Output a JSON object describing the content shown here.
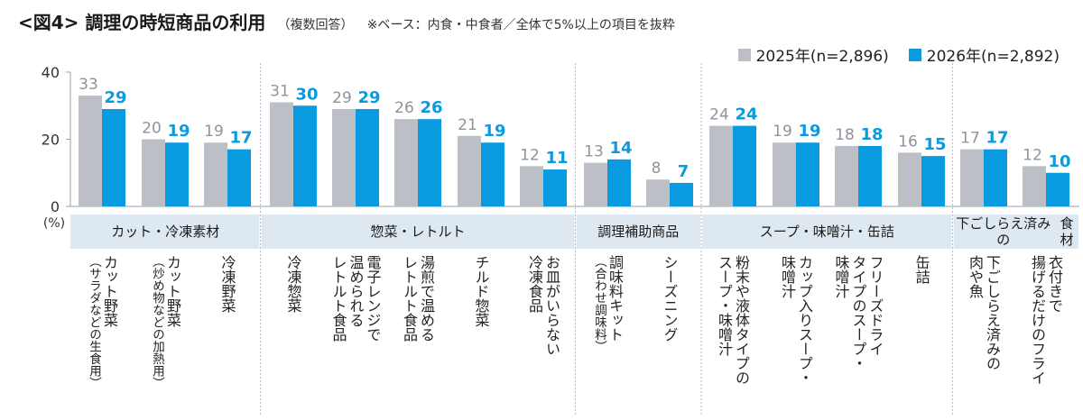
{
  "title": "<図4> 調理の時短商品の利用",
  "subtitle": "（複数回答）",
  "note": "※ベース：内食・中食者／全体で5%以上の項目を抜粋",
  "colors": {
    "s2025": "#bcc0c6",
    "s2026": "#0a9ae0",
    "catBg": "#dde8f1"
  },
  "chart_data": {
    "type": "bar",
    "ylabel": "(%)",
    "ylim": [
      0,
      40
    ],
    "yticks": [
      0,
      20,
      40
    ],
    "grid": false,
    "legend_position": "top-right",
    "categories": [
      "カット野菜（サラダなどの生食用）",
      "カット野菜（炒め物などの加熱用）",
      "冷凍野菜",
      "冷凍惣菜",
      "電子レンジで温められるレトルト食品",
      "湯煎で温めるレトルト食品",
      "チルド惣菜",
      "お皿がいらない冷凍食品",
      "調味料キット（合わせ調味料）",
      "シーズニング",
      "粉末や液体タイプのスープ・味噌汁",
      "カップ入りスープ・味噌汁",
      "フリーズドライタイプのスープ・味噌汁",
      "缶詰",
      "下ごしらえ済みの肉や魚",
      "衣付きで揚げるだけのフライ"
    ],
    "labels": [
      {
        "main": "カット野菜",
        "sub": "（サラダなどの生食用）"
      },
      {
        "main": "カット野菜",
        "sub": "（炒め物などの加熱用）"
      },
      {
        "main": "冷凍野菜"
      },
      {
        "main": "冷凍惣菜"
      },
      {
        "main": "電子レンジで\n温められる\nレトルト食品"
      },
      {
        "main": "湯煎で温める\nレトルト食品"
      },
      {
        "main": "チルド惣菜"
      },
      {
        "main": "お皿がいらない\n冷凍食品"
      },
      {
        "main": "調味料キット",
        "sub": "（合わせ調味料）"
      },
      {
        "main": "シーズニング"
      },
      {
        "main": "粉末や液体タイプの\nスープ・味噌汁"
      },
      {
        "main": "カップ入りスープ・\n味噌汁"
      },
      {
        "main": "フリーズドライ\nタイプのスープ・\n味噌汁"
      },
      {
        "main": "缶詰"
      },
      {
        "main": "下ごしらえ済みの\n肉や魚"
      },
      {
        "main": "衣付きで\n揚げるだけのフライ"
      }
    ],
    "groups": [
      {
        "name": "カット・冷凍素材",
        "from": 0,
        "to": 2
      },
      {
        "name": "惣菜・レトルト",
        "from": 3,
        "to": 7
      },
      {
        "name": "調理補助商品",
        "from": 8,
        "to": 9
      },
      {
        "name": "スープ・味噌汁・缶詰",
        "from": 10,
        "to": 13
      },
      {
        "name": "下ごしらえ済みの\n食材",
        "from": 14,
        "to": 15
      }
    ],
    "series": [
      {
        "name": "2025年(n=2,896)",
        "values": [
          33,
          20,
          19,
          31,
          29,
          26,
          21,
          12,
          13,
          8,
          24,
          19,
          18,
          16,
          17,
          12
        ]
      },
      {
        "name": "2026年(n=2,892)",
        "values": [
          29,
          19,
          17,
          30,
          29,
          26,
          19,
          11,
          14,
          7,
          24,
          19,
          18,
          15,
          17,
          10
        ]
      }
    ]
  }
}
